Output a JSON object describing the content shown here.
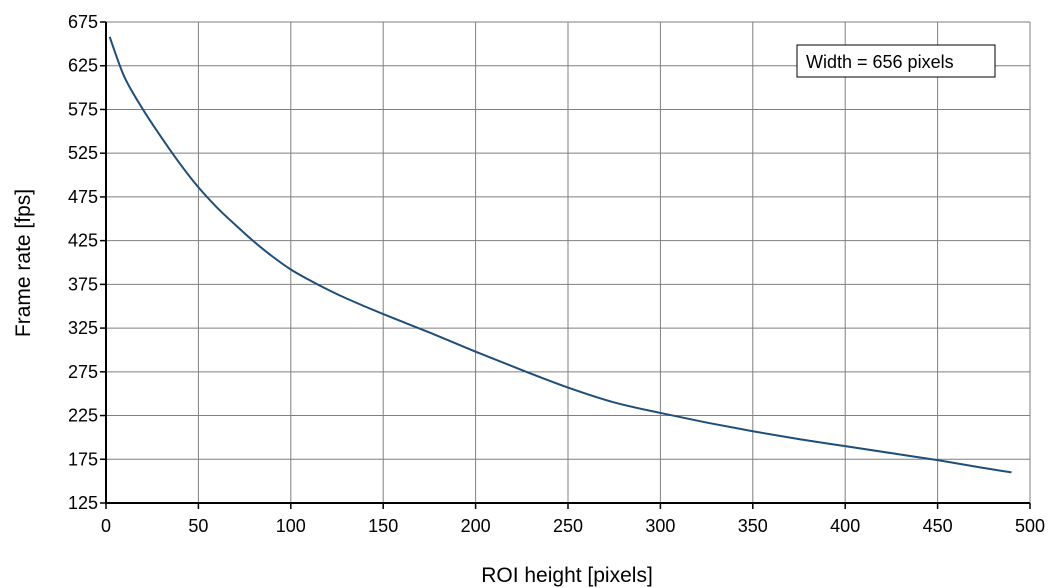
{
  "chart_data": {
    "type": "line",
    "title": "",
    "xlabel": "ROI height [pixels]",
    "ylabel": "Frame rate [fps]",
    "xlim": [
      0,
      500
    ],
    "ylim": [
      125,
      675
    ],
    "x_ticks": [
      0,
      50,
      100,
      150,
      200,
      250,
      300,
      350,
      400,
      450,
      500
    ],
    "y_ticks": [
      125,
      175,
      225,
      275,
      325,
      375,
      425,
      475,
      525,
      575,
      625,
      675
    ],
    "grid": true,
    "legend": "none",
    "annotation": "Width = 656 pixels",
    "series": [
      {
        "color": "#1f4e79",
        "x": [
          2,
          10,
          20,
          30,
          40,
          50,
          60,
          70,
          80,
          90,
          100,
          110,
          120,
          130,
          150,
          175,
          200,
          225,
          250,
          275,
          300,
          325,
          350,
          375,
          400,
          425,
          450,
          475,
          490
        ],
        "y": [
          658,
          612,
          575,
          543,
          513,
          486,
          463,
          443,
          424,
          407,
          392,
          380,
          369,
          359,
          341,
          320,
          298,
          277,
          257,
          240,
          228,
          217,
          207,
          198,
          190,
          182,
          174,
          165,
          160
        ]
      }
    ]
  }
}
